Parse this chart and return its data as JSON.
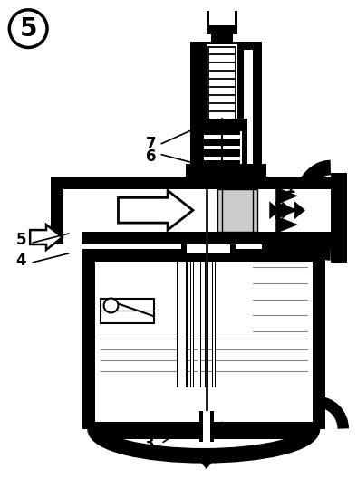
{
  "background_color": "#ffffff",
  "black": "#000000",
  "gray": "#888888",
  "lightgray": "#cccccc",
  "figure_number": "5",
  "label_fontsize": 12
}
